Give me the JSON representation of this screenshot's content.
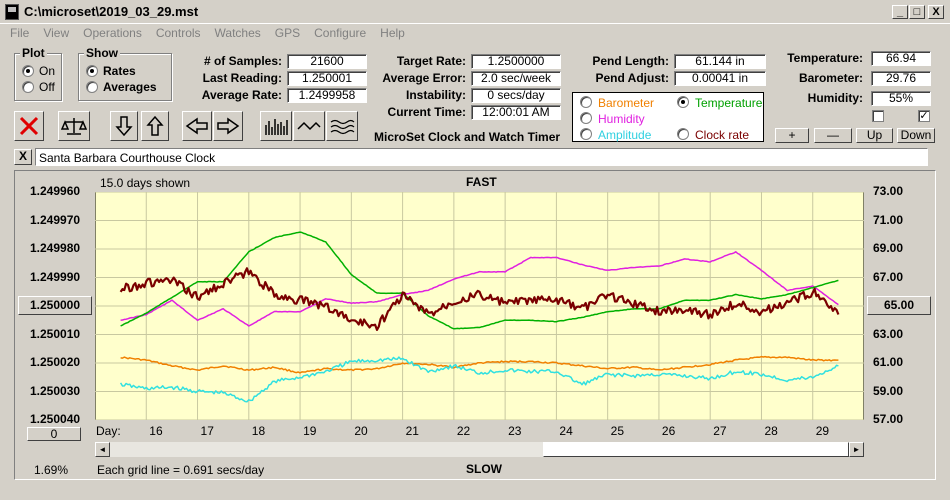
{
  "window": {
    "title": "C:\\microset\\2019_03_29.mst",
    "min": "_",
    "max": "□",
    "close": "X"
  },
  "menu": [
    "File",
    "View",
    "Operations",
    "Controls",
    "Watches",
    "GPS",
    "Configure",
    "Help"
  ],
  "plot_group": {
    "title": "Plot",
    "on_label": "On",
    "off_label": "Off",
    "selected": "On"
  },
  "show_group": {
    "title": "Show",
    "rates_label": "Rates",
    "averages_label": "Averages",
    "selected": "Rates"
  },
  "stats": {
    "samples_label": "# of Samples:",
    "samples": "21600",
    "last_label": "Last Reading:",
    "last": "1.250001",
    "avg_label": "Average Rate:",
    "avg": "1.2499958"
  },
  "rates": {
    "target_label": "Target Rate:",
    "target": "1.2500000",
    "avgerr_label": "Average Error:",
    "avgerr": "2.0 sec/week",
    "instab_label": "Instability:",
    "instab": "0 secs/day",
    "time_label": "Current Time:",
    "time": "12:00:01 AM",
    "product": "MicroSet Clock and Watch Timer"
  },
  "pendulum": {
    "length_label": "Pend Length:",
    "length": "61.144 in",
    "adjust_label": "Pend Adjust:",
    "adjust": "0.00041 in"
  },
  "sensor_select": {
    "barometer": "Barometer",
    "temperature": "Temperature",
    "humidity": "Humidity",
    "amplitude": "Amplitude",
    "clockrate": "Clock rate",
    "selected": "Temperature"
  },
  "environment": {
    "temp_label": "Temperature:",
    "temp": "66.94",
    "baro_label": "Barometer:",
    "baro": "29.76",
    "hum_label": "Humidity:",
    "hum": "55%",
    "check1": false,
    "check2": true,
    "plus": "+",
    "minus": "—",
    "up": "Up",
    "down": "Down"
  },
  "clock_name": {
    "close": "X",
    "value": "Santa Barbara Courthouse Clock"
  },
  "plot": {
    "days_shown": "15.0 days shown",
    "top_label": "FAST",
    "bottom_label": "SLOW",
    "center_left": "1.250000",
    "center_right": "65.00",
    "bottom_btn": "0",
    "percent": "1.69%",
    "grid_note": "Each grid line = 0.691 secs/day",
    "day_label": "Day:",
    "colors": {
      "background": "#ffffcc",
      "clock_rate": "#7a0000",
      "temperature": "#00b000",
      "humidity": "#e020e0",
      "barometer": "#f08000",
      "amplitude": "#30e0e0"
    }
  },
  "chart_data": {
    "type": "line",
    "x": [
      15.5,
      16,
      16.5,
      17,
      17.5,
      18,
      18.5,
      19,
      19.5,
      20,
      20.5,
      21,
      21.5,
      22,
      22.5,
      23,
      23.5,
      24,
      24.5,
      25,
      25.5,
      26,
      26.5,
      27,
      27.5,
      28,
      28.5,
      29,
      29.5
    ],
    "xticks": [
      "16",
      "17",
      "18",
      "19",
      "20",
      "21",
      "22",
      "23",
      "24",
      "25",
      "26",
      "27",
      "28",
      "29"
    ],
    "left_axis": {
      "ticks": [
        "1.249960",
        "1.249970",
        "1.249980",
        "1.249990",
        "1.250000",
        "1.250010",
        "1.250020",
        "1.250030",
        "1.250040"
      ],
      "ylim": [
        1.24996,
        1.25004
      ],
      "inverted": true
    },
    "right_axis": {
      "ticks": [
        "73.00",
        "71.00",
        "69.00",
        "67.00",
        "65.00",
        "63.00",
        "61.00",
        "59.00",
        "57.00"
      ],
      "ylim": [
        57,
        73
      ]
    },
    "series": [
      {
        "key": "clock_rate",
        "axis": "left",
        "values": [
          1.249994,
          1.249992,
          1.249991,
          1.249997,
          1.249992,
          1.249988,
          1.249996,
          1.249998,
          1.25,
          1.250005,
          1.250007,
          1.249996,
          1.250003,
          1.249998,
          1.249996,
          1.249999,
          1.249998,
          1.249998,
          1.250001,
          1.249996,
          1.249999,
          1.250002,
          1.250001,
          1.250003,
          1.249999,
          1.250002,
          1.249999,
          1.249995,
          1.250003
        ]
      },
      {
        "key": "temperature",
        "axis": "right",
        "values": [
          63.6,
          64.5,
          65.6,
          66.7,
          66.7,
          68.8,
          69.8,
          70.2,
          69.5,
          67.2,
          65.9,
          65.9,
          64.3,
          63.4,
          63.5,
          64.0,
          64.0,
          63.9,
          64.2,
          64.6,
          64.8,
          64.8,
          65.4,
          65.4,
          65.8,
          65.5,
          65.8,
          66.3,
          66.8
        ]
      },
      {
        "key": "humidity",
        "axis": "right",
        "values": [
          64.0,
          64.4,
          65.4,
          64.0,
          64.8,
          63.6,
          64.6,
          64.6,
          65.5,
          65.2,
          65.3,
          65.8,
          66.1,
          66.9,
          67.4,
          67.4,
          68.4,
          68.4,
          67.9,
          67.5,
          67.7,
          67.8,
          68.3,
          68.1,
          68.8,
          67.5,
          66.1,
          66.4,
          65.1
        ]
      },
      {
        "key": "barometer",
        "axis": "right",
        "values": [
          61.4,
          61.2,
          60.8,
          60.5,
          60.8,
          60.5,
          60.7,
          60.3,
          60.6,
          60.5,
          60.6,
          61.0,
          60.9,
          60.7,
          61.0,
          61.1,
          61.1,
          61.0,
          60.8,
          60.6,
          60.7,
          60.5,
          60.7,
          60.9,
          61.2,
          61.4,
          61.4,
          61.2,
          61.2
        ]
      },
      {
        "key": "amplitude",
        "axis": "right",
        "values": [
          59.5,
          59.2,
          59.3,
          59.0,
          58.9,
          58.3,
          59.7,
          60.0,
          60.4,
          61.1,
          61.2,
          61.3,
          60.4,
          60.8,
          60.3,
          60.5,
          60.4,
          60.4,
          59.5,
          60.2,
          60.1,
          60.2,
          60.1,
          59.9,
          60.4,
          60.2,
          59.8,
          60.0,
          60.8
        ]
      }
    ]
  },
  "scrollbar": {
    "left": "◄",
    "right": "►"
  }
}
